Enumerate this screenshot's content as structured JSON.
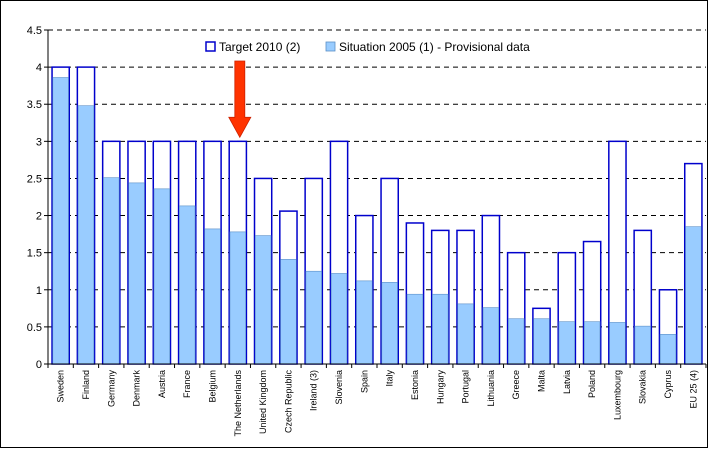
{
  "chart_data": {
    "type": "bar",
    "categories": [
      "Sweden",
      "Finland",
      "Germany",
      "Denmark",
      "Austria",
      "France",
      "Belgium",
      "The Netherlands",
      "United Kingdom",
      "Czech Republic",
      "Ireland (3)",
      "Slovenia",
      "Spain",
      "Italy",
      "Estonia",
      "Hungary",
      "Portugal",
      "Lithuania",
      "Greece",
      "Malta",
      "Latvia",
      "Poland",
      "Luxembourg",
      "Slovakia",
      "Cyprus",
      "EU 25 (4)"
    ],
    "series": [
      {
        "name": "Target 2010 (2)",
        "values": [
          4,
          4,
          3,
          3,
          3,
          3,
          3,
          3,
          2.5,
          2.06,
          2.5,
          3,
          2,
          2.5,
          1.9,
          1.8,
          1.8,
          2,
          1.5,
          0.75,
          1.5,
          1.65,
          3,
          1.8,
          1,
          2.7
        ]
      },
      {
        "name": "Situation 2005 (1) - Provisional data",
        "values": [
          3.86,
          3.48,
          2.51,
          2.44,
          2.36,
          2.13,
          1.82,
          1.78,
          1.73,
          1.41,
          1.25,
          1.22,
          1.12,
          1.1,
          0.94,
          0.94,
          0.81,
          0.76,
          0.61,
          0.61,
          0.57,
          0.57,
          0.56,
          0.51,
          0.4,
          1.85
        ]
      }
    ],
    "ylim": [
      0,
      4.5
    ],
    "yticks": [
      "0",
      "0.5",
      "1",
      "1.5",
      "2",
      "2.5",
      "3",
      "3.5",
      "4",
      "4.5"
    ],
    "grid": "dashed horizontal",
    "legend_position": "top",
    "highlight": {
      "category": "The Netherlands",
      "marker": "red arrow"
    },
    "colors": {
      "target_border": "#0000cc",
      "target_fill": "#ffffff",
      "situation_fill": "#99ccff",
      "situation_border": "#5b8fc7",
      "arrow": "#ff3300",
      "frame": "#000000"
    }
  }
}
